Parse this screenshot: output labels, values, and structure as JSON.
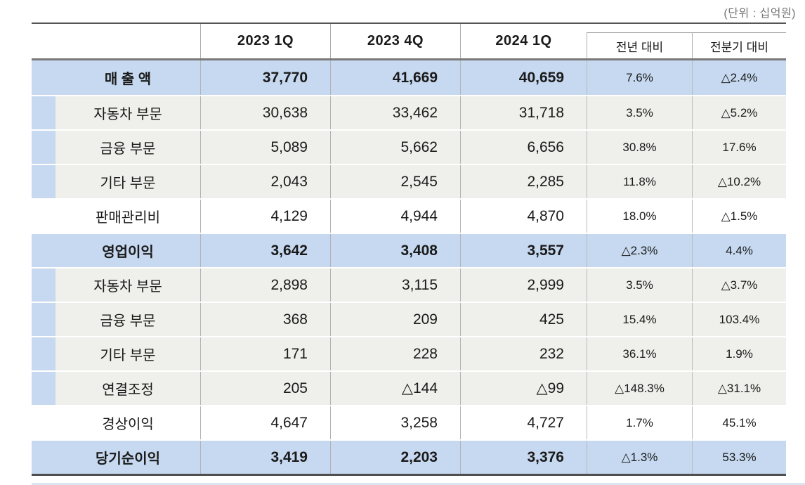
{
  "unit_note": "(단위 : 십억원)",
  "colors": {
    "section_row_bg": "#c6d9f0",
    "sub_row_bg": "#efefec",
    "heavy_rule": "#4f4f4f",
    "cell_border": "#adadad"
  },
  "table": {
    "headers": [
      "",
      "2023 1Q",
      "2023 4Q",
      "2024 1Q",
      "전년 대비",
      "전분기 대비"
    ],
    "rows": [
      {
        "label": "매 출 액",
        "type": "section",
        "values": [
          "37,770",
          "41,669",
          "40,659"
        ],
        "yoy": "7.6%",
        "qoq": "△2.4%"
      },
      {
        "label": "자동차 부문",
        "type": "sub",
        "values": [
          "30,638",
          "33,462",
          "31,718"
        ],
        "yoy": "3.5%",
        "qoq": "△5.2%"
      },
      {
        "label": "금융 부문",
        "type": "sub",
        "values": [
          "5,089",
          "5,662",
          "6,656"
        ],
        "yoy": "30.8%",
        "qoq": "17.6%"
      },
      {
        "label": "기타 부문",
        "type": "sub",
        "values": [
          "2,043",
          "2,545",
          "2,285"
        ],
        "yoy": "11.8%",
        "qoq": "△10.2%"
      },
      {
        "label": "판매관리비",
        "type": "plain",
        "values": [
          "4,129",
          "4,944",
          "4,870"
        ],
        "yoy": "18.0%",
        "qoq": "△1.5%"
      },
      {
        "label": "영업이익",
        "type": "section",
        "values": [
          "3,642",
          "3,408",
          "3,557"
        ],
        "yoy": "△2.3%",
        "qoq": "4.4%"
      },
      {
        "label": "자동차 부문",
        "type": "sub",
        "values": [
          "2,898",
          "3,115",
          "2,999"
        ],
        "yoy": "3.5%",
        "qoq": "△3.7%"
      },
      {
        "label": "금융 부문",
        "type": "sub",
        "values": [
          "368",
          "209",
          "425"
        ],
        "yoy": "15.4%",
        "qoq": "103.4%"
      },
      {
        "label": "기타 부문",
        "type": "sub",
        "values": [
          "171",
          "228",
          "232"
        ],
        "yoy": "36.1%",
        "qoq": "1.9%"
      },
      {
        "label": "연결조정",
        "type": "sub",
        "values": [
          "205",
          "△144",
          "△99"
        ],
        "yoy": "△148.3%",
        "qoq": "△31.1%"
      },
      {
        "label": "경상이익",
        "type": "plain",
        "values": [
          "4,647",
          "3,258",
          "4,727"
        ],
        "yoy": "1.7%",
        "qoq": "45.1%"
      },
      {
        "label": "당기순이익",
        "type": "section",
        "values": [
          "3,419",
          "2,203",
          "3,376"
        ],
        "yoy": "△1.3%",
        "qoq": "53.3%"
      }
    ]
  }
}
